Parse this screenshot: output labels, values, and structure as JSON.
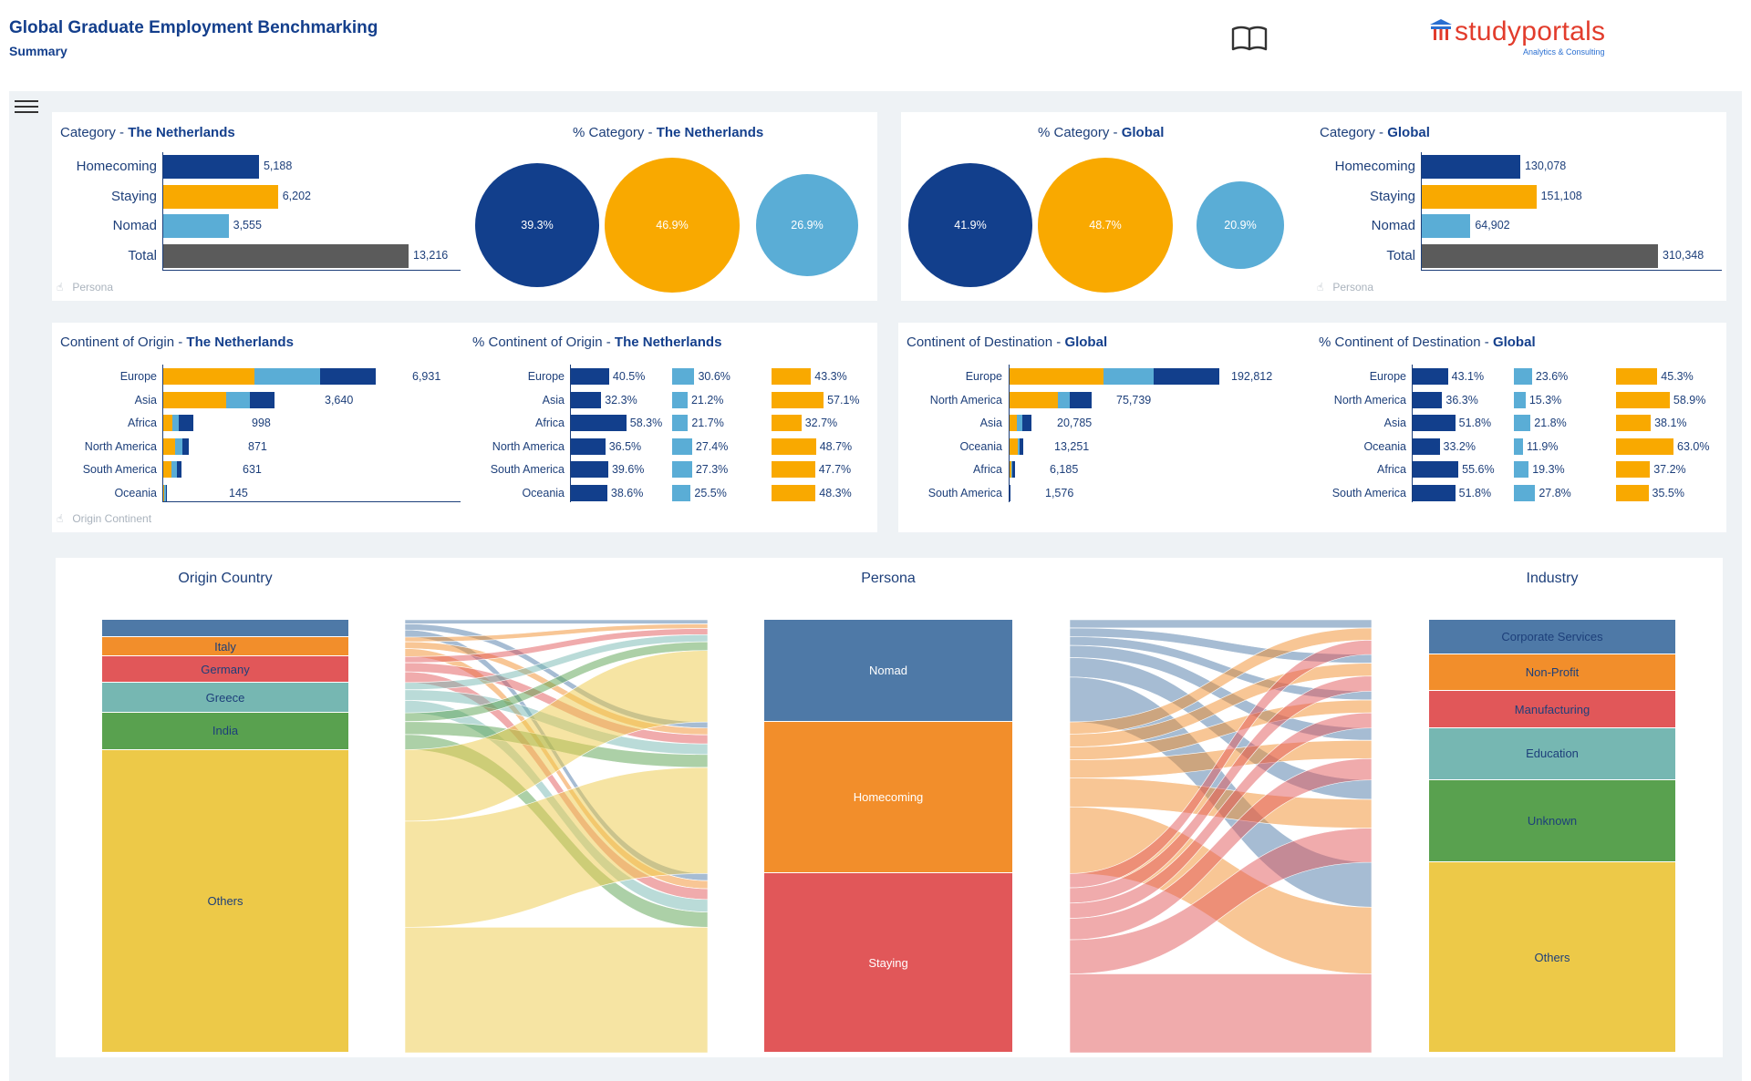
{
  "header": {
    "title": "Global Graduate Employment Benchmarking",
    "subtitle": "Summary",
    "logo_text": "studyportals",
    "logo_tagline": "Analytics & Consulting"
  },
  "colors": {
    "homecoming": "#123f8c",
    "staying": "#f9a900",
    "nomad": "#5aadd6",
    "total": "#5b5b5b",
    "sankey_nomad": "#4e79a7",
    "sankey_homecoming": "#f28e2b",
    "sankey_staying": "#e15759",
    "sankey_teal": "#76b7b2",
    "sankey_green": "#59a14f",
    "sankey_yellow": "#edc948"
  },
  "panels": {
    "category_nl": {
      "title_prefix": "Category - ",
      "title_bold": "The Netherlands",
      "hint": "Persona",
      "rows": [
        {
          "label": "Homecoming",
          "value": 5188,
          "display": "5,188"
        },
        {
          "label": "Staying",
          "value": 6202,
          "display": "6,202"
        },
        {
          "label": "Nomad",
          "value": 3555,
          "display": "3,555"
        },
        {
          "label": "Total",
          "value": 13216,
          "display": "13,216"
        }
      ]
    },
    "pct_category_nl": {
      "title_prefix": "% Category - ",
      "title_bold": "The Netherlands",
      "circles": [
        {
          "label": "39.3%",
          "value": 39.3
        },
        {
          "label": "46.9%",
          "value": 46.9
        },
        {
          "label": "26.9%",
          "value": 26.9
        }
      ]
    },
    "pct_category_global": {
      "title_prefix": "% Category - ",
      "title_bold": "Global",
      "circles": [
        {
          "label": "41.9%",
          "value": 41.9
        },
        {
          "label": "48.7%",
          "value": 48.7
        },
        {
          "label": "20.9%",
          "value": 20.9
        }
      ]
    },
    "category_global": {
      "title_prefix": "Category - ",
      "title_bold": "Global",
      "hint": "Persona",
      "rows": [
        {
          "label": "Homecoming",
          "value": 130078,
          "display": "130,078"
        },
        {
          "label": "Staying",
          "value": 151108,
          "display": "151,108"
        },
        {
          "label": "Nomad",
          "value": 64902,
          "display": "64,902"
        },
        {
          "label": "Total",
          "value": 310348,
          "display": "310,348"
        }
      ]
    },
    "origin_nl": {
      "title_prefix": "Continent of Origin - ",
      "title_bold": "The Netherlands",
      "hint": "Origin Continent",
      "rows": [
        {
          "label": "Europe",
          "staying": 3000,
          "nomad": 2120,
          "homecoming": 1811,
          "display": "6,931"
        },
        {
          "label": "Asia",
          "staying": 2080,
          "nomad": 772,
          "homecoming": 788,
          "display": "3,640"
        },
        {
          "label": "Africa",
          "staying": 326,
          "nomad": 217,
          "homecoming": 455,
          "display": "998"
        },
        {
          "label": "North America",
          "staying": 424,
          "nomad": 239,
          "homecoming": 208,
          "display": "871"
        },
        {
          "label": "South America",
          "staying": 301,
          "nomad": 172,
          "homecoming": 158,
          "display": "631"
        },
        {
          "label": "Oceania",
          "staying": 70,
          "nomad": 37,
          "homecoming": 38,
          "display": "145"
        }
      ]
    },
    "pct_origin_nl": {
      "title_prefix": "% Continent of Origin - ",
      "title_bold": "The Netherlands",
      "rows": [
        {
          "label": "Europe",
          "homecoming": 40.5,
          "nomad": 30.6,
          "staying": 43.3,
          "h": "40.5%",
          "n": "30.6%",
          "s": "43.3%"
        },
        {
          "label": "Asia",
          "homecoming": 32.3,
          "nomad": 21.2,
          "staying": 57.1,
          "h": "32.3%",
          "n": "21.2%",
          "s": "57.1%"
        },
        {
          "label": "Africa",
          "homecoming": 58.3,
          "nomad": 21.7,
          "staying": 32.7,
          "h": "58.3%",
          "n": "21.7%",
          "s": "32.7%"
        },
        {
          "label": "North America",
          "homecoming": 36.5,
          "nomad": 27.4,
          "staying": 48.7,
          "h": "36.5%",
          "n": "27.4%",
          "s": "48.7%"
        },
        {
          "label": "South America",
          "homecoming": 39.6,
          "nomad": 27.3,
          "staying": 47.7,
          "h": "39.6%",
          "n": "27.3%",
          "s": "47.7%"
        },
        {
          "label": "Oceania",
          "homecoming": 38.6,
          "nomad": 25.5,
          "staying": 48.3,
          "h": "38.6%",
          "n": "25.5%",
          "s": "48.3%"
        }
      ]
    },
    "dest_global": {
      "title_prefix": "Continent of Destination - ",
      "title_bold": "Global",
      "rows": [
        {
          "label": "Europe",
          "staying": 87200,
          "nomad": 45500,
          "homecoming": 60112,
          "display": "192,812"
        },
        {
          "label": "North America",
          "staying": 44700,
          "nomad": 11600,
          "homecoming": 19439,
          "display": "75,739"
        },
        {
          "label": "Asia",
          "staying": 7900,
          "nomad": 4500,
          "homecoming": 8385,
          "display": "20,785"
        },
        {
          "label": "Oceania",
          "staying": 8300,
          "nomad": 1600,
          "homecoming": 3351,
          "display": "13,251"
        },
        {
          "label": "Africa",
          "staying": 2300,
          "nomad": 1200,
          "homecoming": 2685,
          "display": "6,185"
        },
        {
          "label": "South America",
          "staying": 560,
          "nomad": 440,
          "homecoming": 576,
          "display": "1,576"
        }
      ]
    },
    "pct_dest_global": {
      "title_prefix": "% Continent of Destination - ",
      "title_bold": "Global",
      "rows": [
        {
          "label": "Europe",
          "homecoming": 43.1,
          "nomad": 23.6,
          "staying": 45.3,
          "h": "43.1%",
          "n": "23.6%",
          "s": "45.3%"
        },
        {
          "label": "North America",
          "homecoming": 36.3,
          "nomad": 15.3,
          "staying": 58.9,
          "h": "36.3%",
          "n": "15.3%",
          "s": "58.9%"
        },
        {
          "label": "Asia",
          "homecoming": 51.8,
          "nomad": 21.8,
          "staying": 38.1,
          "h": "51.8%",
          "n": "21.8%",
          "s": "38.1%"
        },
        {
          "label": "Oceania",
          "homecoming": 33.2,
          "nomad": 11.9,
          "staying": 63.0,
          "h": "33.2%",
          "n": "11.9%",
          "s": "63.0%"
        },
        {
          "label": "Africa",
          "homecoming": 55.6,
          "nomad": 19.3,
          "staying": 37.2,
          "h": "55.6%",
          "n": "19.3%",
          "s": "37.2%"
        },
        {
          "label": "South America",
          "homecoming": 51.8,
          "nomad": 27.8,
          "staying": 35.5,
          "h": "51.8%",
          "n": "27.8%",
          "s": "35.5%"
        }
      ]
    }
  },
  "sankey": {
    "origin_title": "Origin Country",
    "persona_title": "Persona",
    "industry_title": "Industry",
    "origin": [
      {
        "label": "",
        "value": 4,
        "color": "#4e79a7"
      },
      {
        "label": "Italy",
        "value": 4.5,
        "color": "#f28e2b"
      },
      {
        "label": "Germany",
        "value": 6,
        "color": "#e15759"
      },
      {
        "label": "Greece",
        "value": 7,
        "color": "#76b7b2"
      },
      {
        "label": "India",
        "value": 8.5,
        "color": "#59a14f"
      },
      {
        "label": "Others",
        "value": 70,
        "color": "#edc948"
      }
    ],
    "persona": [
      {
        "label": "Nomad",
        "value": 23.6,
        "color": "#4e79a7"
      },
      {
        "label": "Homecoming",
        "value": 35,
        "color": "#f28e2b"
      },
      {
        "label": "Staying",
        "value": 41.4,
        "color": "#e15759"
      }
    ],
    "industry": [
      {
        "label": "Corporate Services",
        "value": 8,
        "color": "#4e79a7"
      },
      {
        "label": "Non-Profit",
        "value": 8.5,
        "color": "#f28e2b"
      },
      {
        "label": "Manufacturing",
        "value": 8.5,
        "color": "#e15759"
      },
      {
        "label": "Education",
        "value": 12,
        "color": "#76b7b2"
      },
      {
        "label": "Unknown",
        "value": 19,
        "color": "#59a14f"
      },
      {
        "label": "Others",
        "value": 44,
        "color": "#edc948"
      }
    ]
  }
}
